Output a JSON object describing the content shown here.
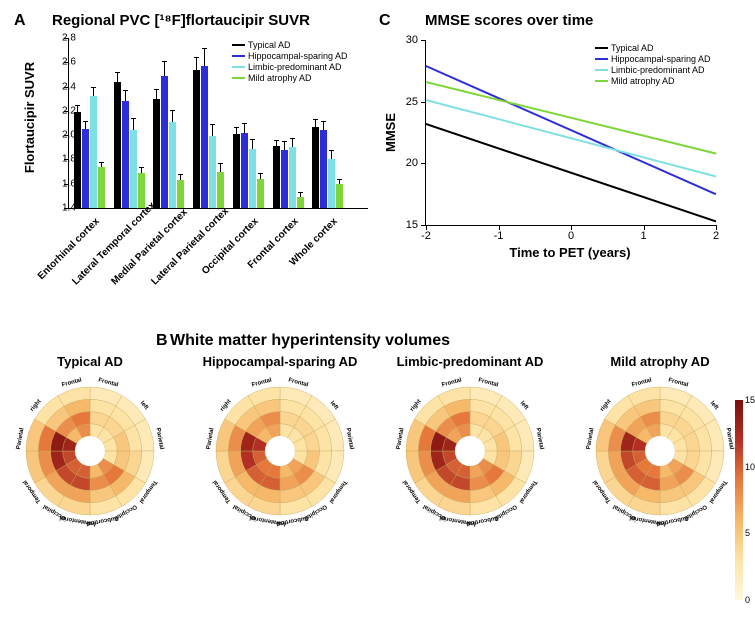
{
  "panelA": {
    "label": "A",
    "title": "Regional PVC [¹⁸F]flortaucipir SUVR",
    "ylabel": "Flortaucipir SUVR",
    "ylim": [
      1.4,
      2.8
    ],
    "yticks": [
      1.4,
      1.6,
      1.8,
      2.0,
      2.2,
      2.4,
      2.6,
      2.8
    ],
    "categories": [
      "Entorhinal cortex",
      "Lateral Temporal cortex",
      "Medial Parietal cortex",
      "Lateral Parietal cortex",
      "Occipital cortex",
      "Frontal cortex",
      "Whole cortex"
    ],
    "series": [
      {
        "name": "Typical AD",
        "color": "#000000",
        "values": [
          2.19,
          2.44,
          2.3,
          2.54,
          2.01,
          1.91,
          2.07
        ],
        "err": [
          0.06,
          0.08,
          0.08,
          0.1,
          0.06,
          0.05,
          0.06
        ]
      },
      {
        "name": "Hippocampal-sparing AD",
        "color": "#2e2ed9",
        "values": [
          2.05,
          2.28,
          2.49,
          2.57,
          2.02,
          1.88,
          2.04
        ],
        "err": [
          0.07,
          0.09,
          0.12,
          0.15,
          0.08,
          0.07,
          0.08
        ]
      },
      {
        "name": "Limbic-predominant AD",
        "color": "#7fe0e3",
        "values": [
          2.32,
          2.04,
          2.11,
          1.99,
          1.89,
          1.9,
          1.8
        ],
        "err": [
          0.08,
          0.1,
          0.1,
          0.1,
          0.08,
          0.08,
          0.08
        ]
      },
      {
        "name": "Mild atrophy AD",
        "color": "#7fd63a",
        "values": [
          1.74,
          1.69,
          1.63,
          1.7,
          1.64,
          1.49,
          1.6
        ],
        "err": [
          0.04,
          0.05,
          0.05,
          0.07,
          0.05,
          0.04,
          0.04
        ]
      }
    ],
    "title_fontsize": 15,
    "label_fontsize": 10
  },
  "panelC": {
    "label": "C",
    "title": "MMSE scores over time",
    "ylabel": "MMSE",
    "xlabel": "Time to PET (years)",
    "xlim": [
      -2,
      2
    ],
    "ylim": [
      15,
      30
    ],
    "xticks": [
      -2,
      -1,
      0,
      1,
      2
    ],
    "yticks": [
      15,
      20,
      25,
      30
    ],
    "lines": [
      {
        "name": "Typical AD",
        "color": "#000000",
        "p1": [
          -2,
          23.3
        ],
        "p2": [
          2,
          15.4
        ]
      },
      {
        "name": "Hippocampal-sparing AD",
        "color": "#2e2ed9",
        "p1": [
          -2,
          28.0
        ],
        "p2": [
          2,
          17.6
        ]
      },
      {
        "name": "Limbic-predominant AD",
        "color": "#7fe0e3",
        "p1": [
          -2,
          25.2
        ],
        "p2": [
          2,
          19.0
        ]
      },
      {
        "name": "Mild atrophy AD",
        "color": "#7fd63a",
        "p1": [
          -2,
          26.7
        ],
        "p2": [
          2,
          20.9
        ]
      }
    ],
    "title_fontsize": 15
  },
  "panelB": {
    "label": "B",
    "title": "White matter hyperintensity volumes",
    "colorbar": {
      "min": 0,
      "max": 15,
      "ticks": [
        0,
        5,
        10,
        15
      ],
      "colors": [
        "#fff7e0",
        "#fde4a6",
        "#f6b869",
        "#e6783c",
        "#b23023",
        "#7a0f0b"
      ]
    },
    "region_labels": {
      "left": "left",
      "right": "right",
      "frontal": "Frontal",
      "parietal": "Parietal",
      "temporal": "Temporal",
      "occipital": "Occipital",
      "sub": "Subcortical",
      "infra": "Infratentorial"
    },
    "plots": [
      {
        "title": "Typical AD",
        "rings": [
          [
            3,
            3,
            3,
            3,
            8,
            6,
            10,
            10,
            11,
            13,
            6,
            8
          ],
          [
            4,
            4,
            5,
            5,
            9,
            8,
            11,
            11,
            13,
            14,
            8,
            9
          ],
          [
            3,
            3,
            3,
            4,
            6,
            5,
            7,
            7,
            8,
            9,
            5,
            6
          ],
          [
            2,
            2,
            2,
            2,
            3,
            3,
            4,
            4,
            5,
            5,
            3,
            3
          ]
        ]
      },
      {
        "title": "Hippocampal-sparing AD",
        "rings": [
          [
            3,
            3,
            3,
            3,
            7,
            6,
            9,
            9,
            10,
            12,
            6,
            7
          ],
          [
            4,
            4,
            4,
            5,
            8,
            7,
            10,
            10,
            12,
            13,
            7,
            8
          ],
          [
            3,
            3,
            3,
            3,
            5,
            5,
            6,
            6,
            7,
            8,
            5,
            5
          ],
          [
            2,
            2,
            2,
            2,
            3,
            3,
            4,
            4,
            4,
            5,
            3,
            3
          ]
        ]
      },
      {
        "title": "Limbic-predominant AD",
        "rings": [
          [
            3,
            3,
            3,
            3,
            8,
            7,
            10,
            10,
            11,
            13,
            7,
            8
          ],
          [
            4,
            4,
            5,
            5,
            9,
            8,
            11,
            11,
            13,
            14,
            8,
            9
          ],
          [
            3,
            3,
            3,
            4,
            6,
            5,
            7,
            7,
            8,
            9,
            5,
            6
          ],
          [
            2,
            2,
            2,
            2,
            3,
            3,
            4,
            4,
            5,
            5,
            3,
            3
          ]
        ]
      },
      {
        "title": "Mild atrophy AD",
        "rings": [
          [
            3,
            3,
            3,
            3,
            7,
            6,
            9,
            9,
            10,
            12,
            6,
            7
          ],
          [
            4,
            4,
            4,
            4,
            8,
            7,
            10,
            10,
            11,
            13,
            7,
            8
          ],
          [
            3,
            3,
            3,
            3,
            5,
            5,
            6,
            7,
            7,
            8,
            5,
            5
          ],
          [
            2,
            2,
            2,
            2,
            3,
            3,
            4,
            4,
            4,
            5,
            3,
            3
          ]
        ]
      }
    ],
    "label_fontsize": 7
  }
}
